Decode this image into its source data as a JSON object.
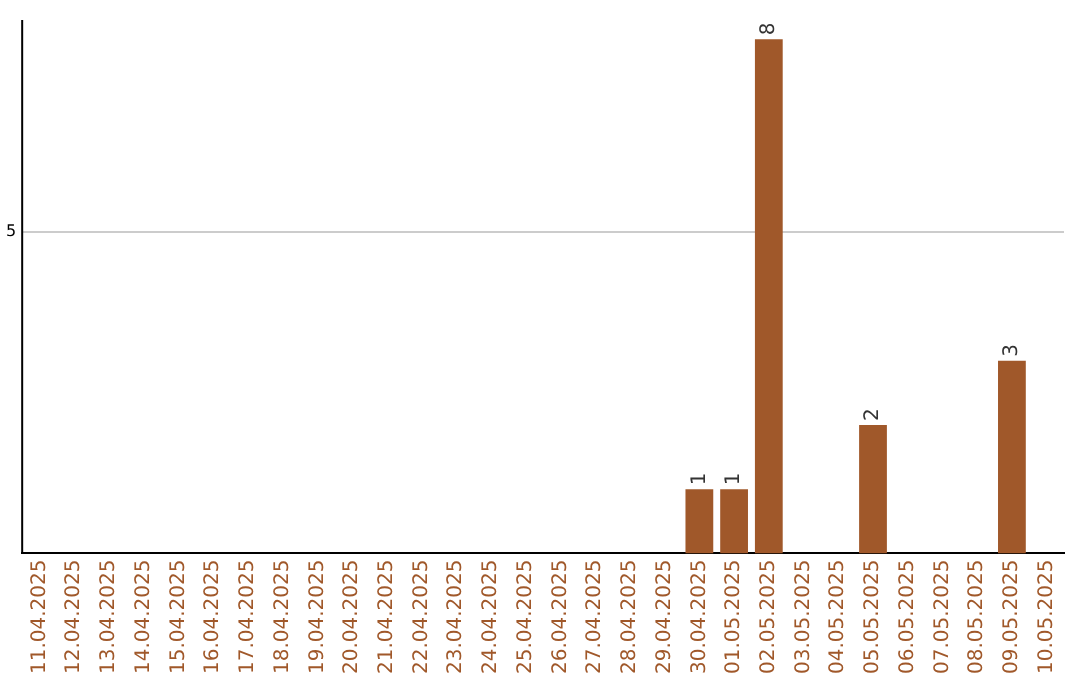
{
  "chart_data": {
    "type": "bar",
    "categories": [
      "11.04.2025",
      "12.04.2025",
      "13.04.2025",
      "14.04.2025",
      "15.04.2025",
      "16.04.2025",
      "17.04.2025",
      "18.04.2025",
      "19.04.2025",
      "20.04.2025",
      "21.04.2025",
      "22.04.2025",
      "23.04.2025",
      "24.04.2025",
      "25.04.2025",
      "26.04.2025",
      "27.04.2025",
      "28.04.2025",
      "29.04.2025",
      "30.04.2025",
      "01.05.2025",
      "02.05.2025",
      "03.05.2025",
      "04.05.2025",
      "05.05.2025",
      "06.05.2025",
      "07.05.2025",
      "08.05.2025",
      "09.05.2025",
      "10.05.2025"
    ],
    "values": [
      null,
      null,
      null,
      null,
      null,
      null,
      null,
      null,
      null,
      null,
      null,
      null,
      null,
      null,
      null,
      null,
      null,
      null,
      null,
      1,
      1,
      8,
      null,
      null,
      2,
      null,
      null,
      null,
      3,
      null
    ],
    "value_labels": [
      null,
      null,
      null,
      null,
      null,
      null,
      null,
      null,
      null,
      null,
      null,
      null,
      null,
      null,
      null,
      null,
      null,
      null,
      null,
      "1",
      "1",
      "8",
      null,
      null,
      "2",
      null,
      null,
      null,
      "3",
      null
    ],
    "color": "#a0582a",
    "ylim": [
      0,
      8.3
    ],
    "yticks": [
      5
    ],
    "grid": "y",
    "legend": false
  }
}
